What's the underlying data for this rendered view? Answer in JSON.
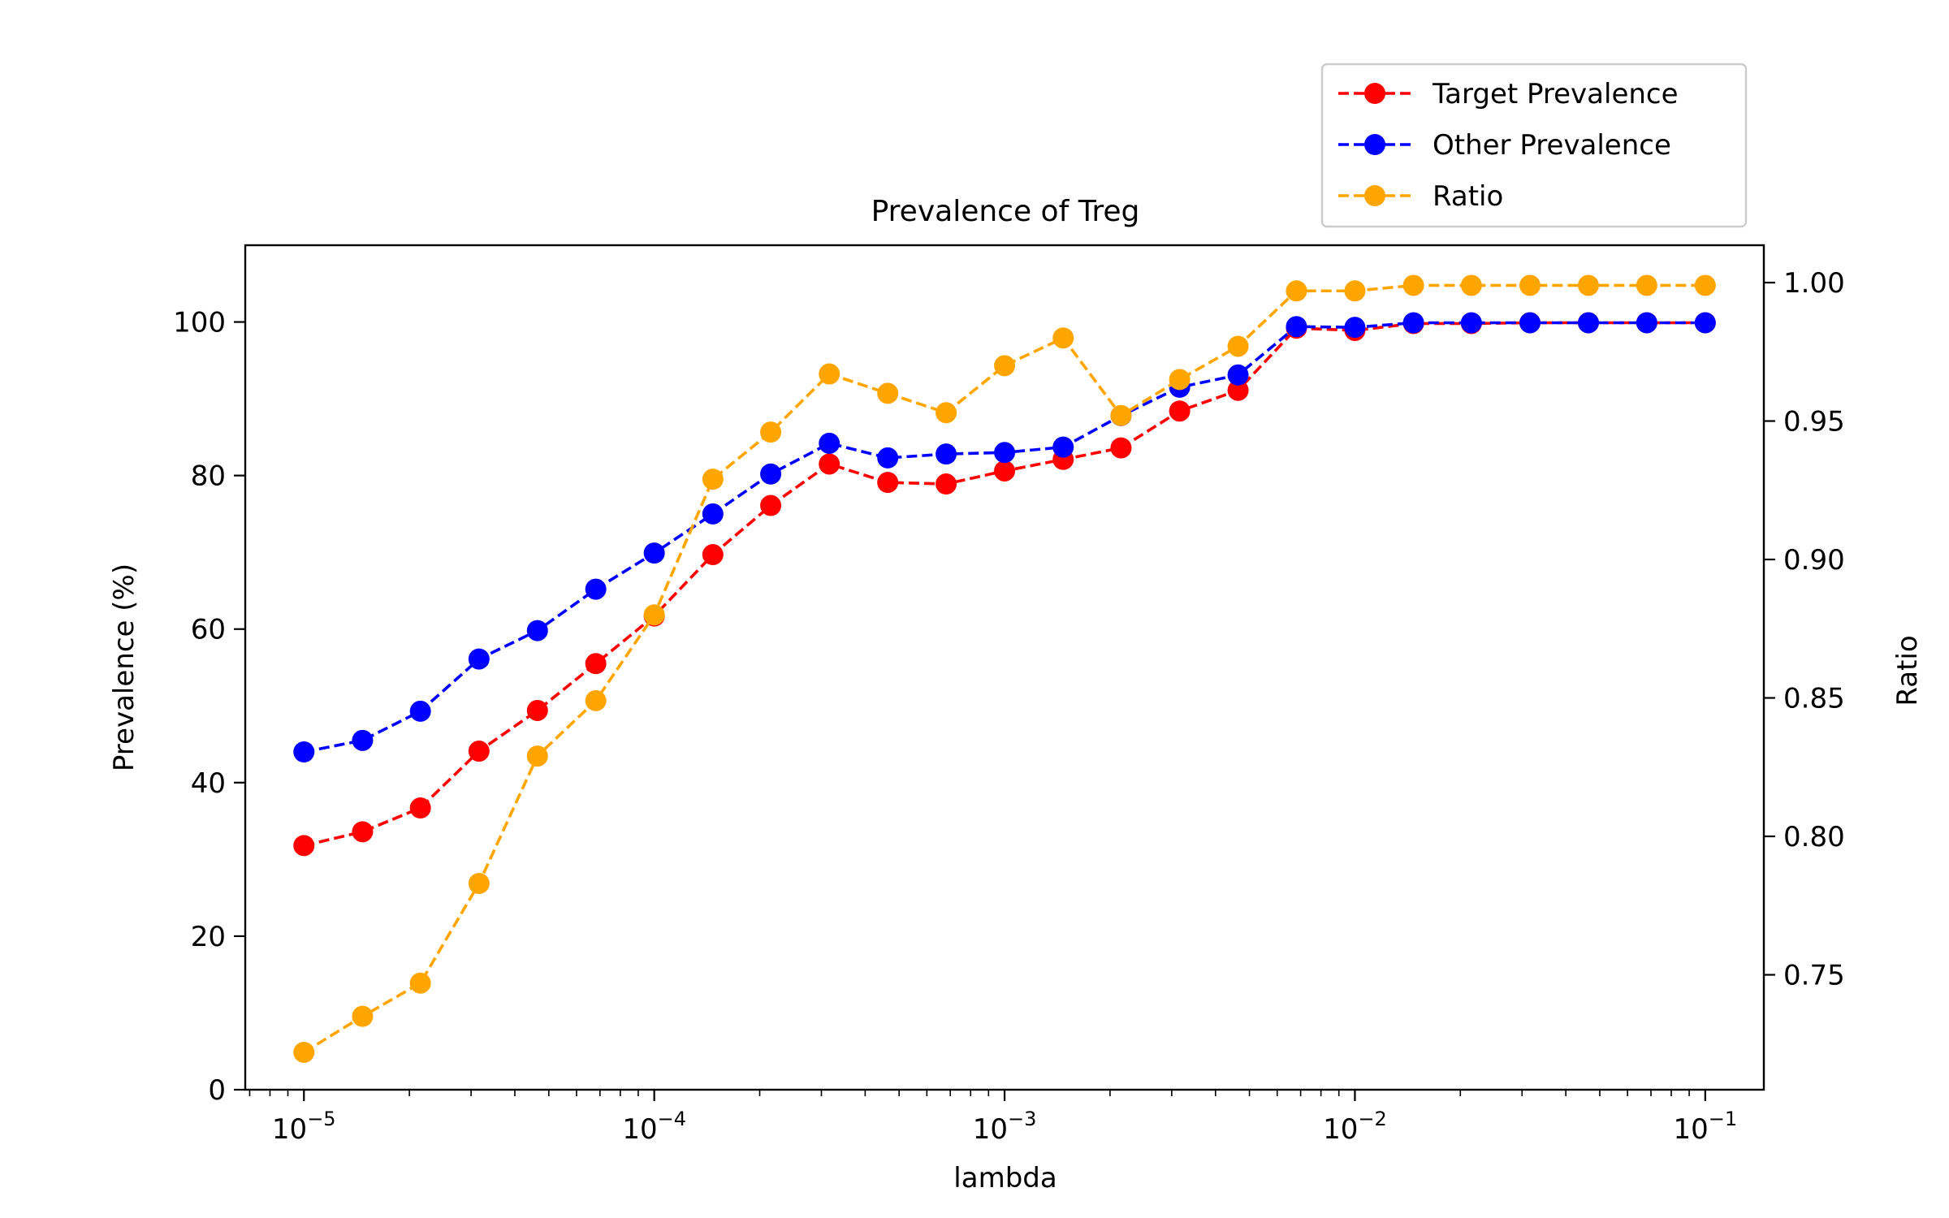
{
  "chart_data": {
    "type": "line",
    "title": "Prevalence of Treg",
    "xlabel": "lambda",
    "ylabel": "Prevalence (%)",
    "y2label": "Ratio",
    "xscale": "log",
    "xlim": [
      6.8e-06,
      0.147
    ],
    "ylim": [
      0,
      110
    ],
    "y2lim": [
      0.7085,
      1.0135
    ],
    "x_ticks": [
      1e-05,
      0.0001,
      0.001,
      0.01,
      0.1
    ],
    "x_tick_labels": [
      {
        "base": "10",
        "exp": "−5"
      },
      {
        "base": "10",
        "exp": "−4"
      },
      {
        "base": "10",
        "exp": "−3"
      },
      {
        "base": "10",
        "exp": "−2"
      },
      {
        "base": "10",
        "exp": "−1"
      }
    ],
    "y_ticks": [
      0,
      20,
      40,
      60,
      80,
      100
    ],
    "y_tick_labels": [
      "0",
      "20",
      "40",
      "60",
      "80",
      "100"
    ],
    "y2_ticks": [
      0.75,
      0.8,
      0.85,
      0.9,
      0.95,
      1.0
    ],
    "y2_tick_labels": [
      "0.75",
      "0.80",
      "0.85",
      "0.90",
      "0.95",
      "1.00"
    ],
    "legend_position": "above top-right",
    "grid": false,
    "x": [
      1e-05,
      1.47e-05,
      2.15e-05,
      3.16e-05,
      4.64e-05,
      6.81e-05,
      0.0001,
      0.000147,
      0.000215,
      0.000316,
      0.000464,
      0.000681,
      0.001,
      0.00147,
      0.00215,
      0.00316,
      0.00464,
      0.00681,
      0.01,
      0.0147,
      0.0215,
      0.0316,
      0.0464,
      0.0681,
      0.1
    ],
    "series": [
      {
        "name": "Target Prevalence",
        "color": "#ff0000",
        "axis": "left",
        "values": [
          31.8,
          33.6,
          36.7,
          44.1,
          49.4,
          55.5,
          61.7,
          69.7,
          76.1,
          81.5,
          79.1,
          78.9,
          80.6,
          82.1,
          83.6,
          88.4,
          91.1,
          99.2,
          98.9,
          99.8,
          99.8,
          99.9,
          99.9,
          99.9,
          99.9
        ]
      },
      {
        "name": "Other Prevalence",
        "color": "#0000ff",
        "axis": "left",
        "values": [
          44.0,
          45.5,
          49.3,
          56.1,
          59.8,
          65.2,
          69.9,
          75.0,
          80.2,
          84.2,
          82.3,
          82.8,
          83.0,
          83.7,
          87.8,
          91.5,
          93.1,
          99.4,
          99.3,
          99.9,
          99.9,
          99.9,
          99.9,
          99.9,
          99.9
        ]
      },
      {
        "name": "Ratio",
        "color": "#ffa500",
        "axis": "right",
        "values": [
          0.722,
          0.735,
          0.747,
          0.783,
          0.829,
          0.849,
          0.88,
          0.929,
          0.946,
          0.967,
          0.96,
          0.953,
          0.97,
          0.98,
          0.952,
          0.965,
          0.977,
          0.997,
          0.997,
          0.999,
          0.999,
          0.999,
          0.999,
          0.999,
          0.999
        ]
      }
    ]
  }
}
